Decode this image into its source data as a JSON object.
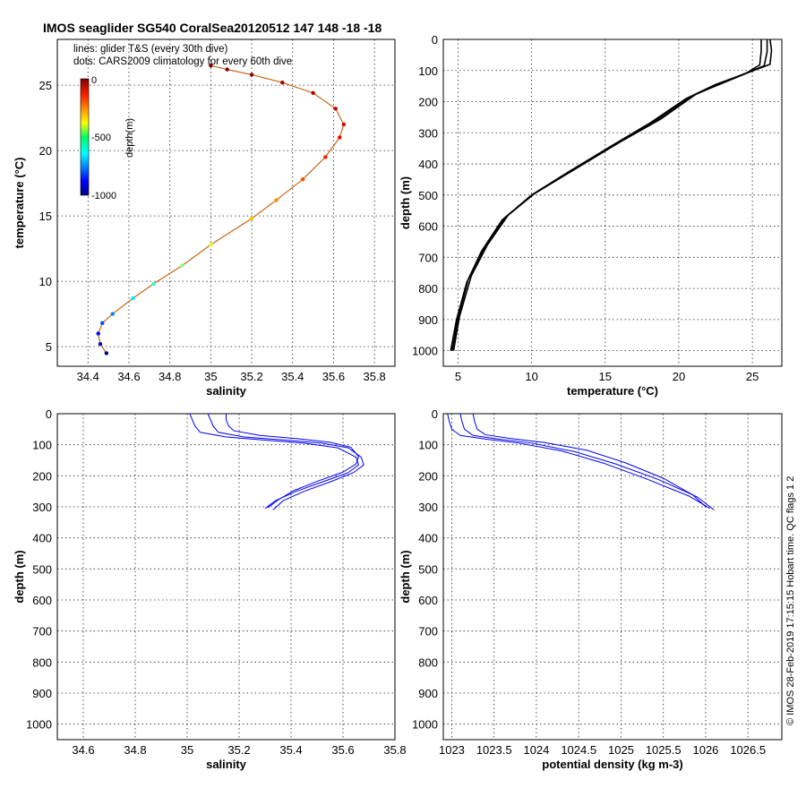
{
  "title": "IMOS seaglider SG540 CoralSea20120512 147  148  -18  -18",
  "side_note": "© IMOS 28-Feb-2019 17:15:15 Hobart time. QC flags 1  2",
  "legend_lines": [
    "lines: glider T&S (every 30th dive)",
    "dots: CARS2009 climatology for every 60th dive"
  ],
  "colorbar": {
    "label": "depth(m)",
    "ticks": [
      "0",
      "-500",
      "-1000"
    ]
  },
  "colors": {
    "glider_line": "#0000ee",
    "temp_profile": "#000000"
  },
  "chart_data": [
    {
      "id": "ts",
      "type": "scatter",
      "xlabel": "salinity",
      "ylabel": "temperature (°C)",
      "xlim": [
        34.25,
        35.9
      ],
      "ylim": [
        3.5,
        28.5
      ],
      "xticks": [
        34.4,
        34.6,
        34.8,
        35,
        35.2,
        35.4,
        35.6,
        35.8
      ],
      "yticks": [
        5,
        10,
        15,
        20,
        25
      ],
      "xticklabels": [
        "34.4",
        "34.6",
        "34.8",
        "35",
        "35.2",
        "35.4",
        "35.6",
        "35.8"
      ],
      "yticklabels": [
        "5",
        "10",
        "15",
        "20",
        "25"
      ],
      "grid": true,
      "series": [
        {
          "x": [
            34.49,
            34.46,
            34.45,
            34.47,
            34.52,
            34.62,
            34.72,
            34.86,
            35.0,
            35.2,
            35.32,
            35.45,
            35.56,
            35.63,
            35.65,
            35.61,
            35.5,
            35.35,
            35.2,
            35.08,
            35.0
          ],
          "y": [
            4.5,
            5.2,
            6.0,
            6.8,
            7.5,
            8.7,
            9.8,
            11.2,
            12.8,
            14.8,
            16.2,
            17.8,
            19.5,
            21.0,
            22.0,
            23.2,
            24.4,
            25.2,
            25.8,
            26.2,
            26.5
          ],
          "depth": [
            -1000,
            -950,
            -880,
            -800,
            -740,
            -650,
            -580,
            -500,
            -420,
            -320,
            -260,
            -200,
            -150,
            -110,
            -90,
            -70,
            -50,
            -30,
            -15,
            -5,
            0
          ]
        }
      ]
    },
    {
      "id": "temp_depth",
      "type": "line",
      "xlabel": "temperature (°C)",
      "ylabel": "depth (m)",
      "xlim": [
        4,
        27
      ],
      "ylim": [
        1050,
        0
      ],
      "xticks": [
        5,
        10,
        15,
        20,
        25
      ],
      "yticks": [
        0,
        100,
        200,
        300,
        400,
        500,
        600,
        700,
        800,
        900,
        1000
      ],
      "xticklabels": [
        "5",
        "10",
        "15",
        "20",
        "25"
      ],
      "yticklabels": [
        "0",
        "100",
        "200",
        "300",
        "400",
        "500",
        "600",
        "700",
        "800",
        "900",
        "1000"
      ],
      "grid": true,
      "series": [
        {
          "x": [
            4.5,
            4.9,
            5.6,
            6.6,
            8.0,
            10.0,
            12.7,
            15.5,
            18.0,
            20.5,
            22.5,
            24.5,
            25.8,
            26.0,
            26.0
          ],
          "y": [
            1000,
            900,
            780,
            680,
            580,
            500,
            420,
            340,
            270,
            190,
            145,
            110,
            85,
            40,
            0
          ]
        },
        {
          "x": [
            4.7,
            5.1,
            5.9,
            7.0,
            8.4,
            10.2,
            13.0,
            16.0,
            18.8,
            21.2,
            23.0,
            24.8,
            26.2,
            26.3,
            26.2
          ],
          "y": [
            1000,
            890,
            760,
            660,
            565,
            495,
            415,
            330,
            255,
            175,
            140,
            105,
            80,
            35,
            0
          ]
        },
        {
          "x": [
            4.6,
            5.0,
            5.7,
            6.8,
            8.2,
            10.1,
            12.9,
            15.8,
            18.4,
            20.9,
            22.8,
            24.6,
            25.5,
            25.6,
            25.6
          ],
          "y": [
            1000,
            895,
            770,
            670,
            572,
            498,
            418,
            335,
            262,
            182,
            142,
            108,
            82,
            38,
            0
          ]
        }
      ]
    },
    {
      "id": "sal_depth",
      "type": "line",
      "xlabel": "salinity",
      "ylabel": "depth (m)",
      "xlim": [
        34.5,
        35.8
      ],
      "ylim": [
        1050,
        0
      ],
      "xticks": [
        34.6,
        34.8,
        35,
        35.2,
        35.4,
        35.6,
        35.8
      ],
      "yticks": [
        0,
        100,
        200,
        300,
        400,
        500,
        600,
        700,
        800,
        900,
        1000
      ],
      "xticklabels": [
        "34.6",
        "34.8",
        "35",
        "35.2",
        "35.4",
        "35.6",
        "35.8"
      ],
      "yticklabels": [
        "0",
        "100",
        "200",
        "300",
        "400",
        "500",
        "600",
        "700",
        "800",
        "900",
        "1000"
      ],
      "grid": true,
      "series": [
        {
          "x": [
            35.01,
            35.02,
            35.03,
            35.05,
            35.15,
            35.3,
            35.45,
            35.58,
            35.65,
            35.66,
            35.62,
            35.52,
            35.42,
            35.34,
            35.3
          ],
          "y": [
            0,
            20,
            40,
            60,
            75,
            85,
            95,
            110,
            140,
            165,
            190,
            220,
            250,
            280,
            305
          ]
        },
        {
          "x": [
            35.08,
            35.09,
            35.1,
            35.12,
            35.22,
            35.38,
            35.52,
            35.62,
            35.67,
            35.68,
            35.64,
            35.55,
            35.45,
            35.37,
            35.33
          ],
          "y": [
            0,
            20,
            40,
            60,
            75,
            85,
            95,
            110,
            140,
            165,
            190,
            220,
            250,
            280,
            310
          ]
        },
        {
          "x": [
            35.15,
            35.15,
            35.16,
            35.18,
            35.28,
            35.42,
            35.55,
            35.63,
            35.66,
            35.65,
            35.6,
            35.5,
            35.41,
            35.35,
            35.31
          ],
          "y": [
            0,
            20,
            40,
            55,
            70,
            80,
            92,
            108,
            138,
            162,
            188,
            218,
            248,
            278,
            303
          ]
        }
      ]
    },
    {
      "id": "dens_depth",
      "type": "line",
      "xlabel": "potential density (kg m-3)",
      "ylabel": "depth (m)",
      "xlim": [
        1022.9,
        1026.9
      ],
      "ylim": [
        1050,
        0
      ],
      "xticks": [
        1023,
        1023.5,
        1024,
        1024.5,
        1025,
        1025.5,
        1026,
        1026.5
      ],
      "yticks": [
        0,
        100,
        200,
        300,
        400,
        500,
        600,
        700,
        800,
        900,
        1000
      ],
      "xticklabels": [
        "1023",
        "1023.5",
        "1024",
        "1024.5",
        "1025",
        "1025.5",
        "1026",
        "1026.5"
      ],
      "yticklabels": [
        "0",
        "100",
        "200",
        "300",
        "400",
        "500",
        "600",
        "700",
        "800",
        "900",
        "1000"
      ],
      "grid": true,
      "series": [
        {
          "x": [
            1022.95,
            1022.97,
            1023.0,
            1023.1,
            1023.4,
            1023.8,
            1024.3,
            1024.8,
            1025.3,
            1025.8,
            1026.05
          ],
          "y": [
            0,
            25,
            50,
            70,
            82,
            95,
            120,
            160,
            210,
            265,
            305
          ]
        },
        {
          "x": [
            1023.1,
            1023.12,
            1023.15,
            1023.25,
            1023.55,
            1023.95,
            1024.45,
            1024.95,
            1025.45,
            1025.9,
            1026.1
          ],
          "y": [
            0,
            25,
            50,
            70,
            82,
            95,
            122,
            163,
            213,
            268,
            310
          ]
        },
        {
          "x": [
            1023.25,
            1023.27,
            1023.3,
            1023.4,
            1023.7,
            1024.1,
            1024.6,
            1025.05,
            1025.5,
            1025.85,
            1026.0
          ],
          "y": [
            0,
            25,
            50,
            68,
            80,
            93,
            118,
            158,
            208,
            262,
            300
          ]
        }
      ]
    }
  ]
}
